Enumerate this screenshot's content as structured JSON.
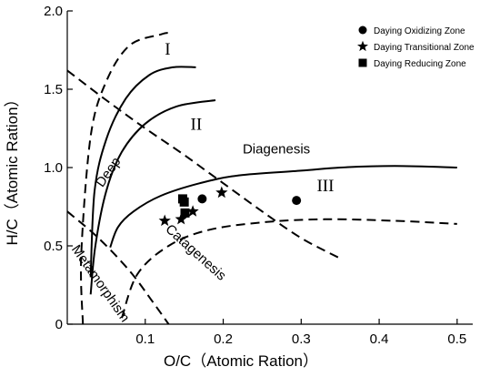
{
  "chart_data": {
    "type": "scatter",
    "xlabel": "O/C（Atomic Ration）",
    "ylabel": "H/C（Atomic Ration）",
    "xlim": [
      0,
      0.52
    ],
    "ylim": [
      0,
      2.0
    ],
    "x_ticks": [
      "0.1",
      "0.2",
      "0.3",
      "0.4",
      "0.5"
    ],
    "y_ticks": [
      "0",
      "0.5",
      "1.0",
      "1.5",
      "2.0"
    ],
    "grid": false,
    "legend_position": "top-right",
    "series": [
      {
        "name": "Daying Oxidizing Zone",
        "marker": "circle",
        "points": [
          {
            "x": 0.173,
            "y": 0.8
          },
          {
            "x": 0.294,
            "y": 0.79
          }
        ]
      },
      {
        "name": "Daying Transitional Zone",
        "marker": "star",
        "points": [
          {
            "x": 0.125,
            "y": 0.66
          },
          {
            "x": 0.146,
            "y": 0.67
          },
          {
            "x": 0.161,
            "y": 0.72
          },
          {
            "x": 0.198,
            "y": 0.84
          }
        ]
      },
      {
        "name": "Daying Reducing Zone",
        "marker": "square",
        "points": [
          {
            "x": 0.148,
            "y": 0.8
          },
          {
            "x": 0.15,
            "y": 0.78
          },
          {
            "x": 0.151,
            "y": 0.71
          }
        ]
      }
    ],
    "curves": [
      {
        "id": "type-I",
        "style": "solid",
        "points": [
          [
            0.03,
            0.3
          ],
          [
            0.035,
            0.85
          ],
          [
            0.05,
            1.18
          ],
          [
            0.075,
            1.44
          ],
          [
            0.105,
            1.59
          ],
          [
            0.135,
            1.64
          ],
          [
            0.165,
            1.64
          ]
        ]
      },
      {
        "id": "type-II",
        "style": "solid",
        "points": [
          [
            0.03,
            0.19
          ],
          [
            0.036,
            0.5
          ],
          [
            0.05,
            0.85
          ],
          [
            0.07,
            1.1
          ],
          [
            0.1,
            1.28
          ],
          [
            0.14,
            1.39
          ],
          [
            0.19,
            1.43
          ]
        ]
      },
      {
        "id": "type-III",
        "style": "solid",
        "points": [
          [
            0.055,
            0.49
          ],
          [
            0.065,
            0.62
          ],
          [
            0.085,
            0.72
          ],
          [
            0.12,
            0.82
          ],
          [
            0.17,
            0.9
          ],
          [
            0.22,
            0.95
          ],
          [
            0.3,
            0.98
          ],
          [
            0.35,
            1.0
          ],
          [
            0.42,
            1.01
          ],
          [
            0.5,
            1.0
          ]
        ]
      },
      {
        "id": "boundary-upper",
        "style": "dashed",
        "points": [
          [
            0.02,
            0.0
          ],
          [
            0.018,
            0.45
          ],
          [
            0.03,
            1.2
          ],
          [
            0.05,
            1.55
          ],
          [
            0.08,
            1.78
          ],
          [
            0.12,
            1.85
          ],
          [
            0.13,
            1.86
          ]
        ]
      },
      {
        "id": "diagenesis-boundary",
        "style": "dashed",
        "points": [
          [
            0.0,
            1.62
          ],
          [
            0.05,
            1.43
          ],
          [
            0.1,
            1.25
          ],
          [
            0.15,
            1.08
          ],
          [
            0.2,
            0.9
          ],
          [
            0.25,
            0.72
          ],
          [
            0.3,
            0.55
          ],
          [
            0.35,
            0.42
          ]
        ]
      },
      {
        "id": "catagenesis-boundary",
        "style": "dashed",
        "points": [
          [
            0.07,
            0.04
          ],
          [
            0.09,
            0.32
          ],
          [
            0.13,
            0.5
          ],
          [
            0.18,
            0.6
          ],
          [
            0.25,
            0.65
          ],
          [
            0.33,
            0.67
          ],
          [
            0.42,
            0.66
          ],
          [
            0.5,
            0.64
          ]
        ]
      },
      {
        "id": "metamorphism-boundary",
        "style": "dashed",
        "points": [
          [
            0.0,
            0.72
          ],
          [
            0.04,
            0.55
          ],
          [
            0.08,
            0.34
          ],
          [
            0.11,
            0.14
          ],
          [
            0.13,
            0.0
          ]
        ]
      }
    ],
    "annotations": [
      {
        "text": "I",
        "x": 0.125,
        "y": 1.72
      },
      {
        "text": "II",
        "x": 0.158,
        "y": 1.24
      },
      {
        "text": "III",
        "x": 0.32,
        "y": 0.85
      },
      {
        "text": "Diagenesis",
        "x": 0.225,
        "y": 1.09
      },
      {
        "text": "Deep",
        "x": 0.045,
        "y": 0.87
      },
      {
        "text": "Catagenesis",
        "x": 0.125,
        "y": 0.6
      },
      {
        "text": "Metamorphism",
        "x": 0.005,
        "y": 0.48
      }
    ]
  }
}
